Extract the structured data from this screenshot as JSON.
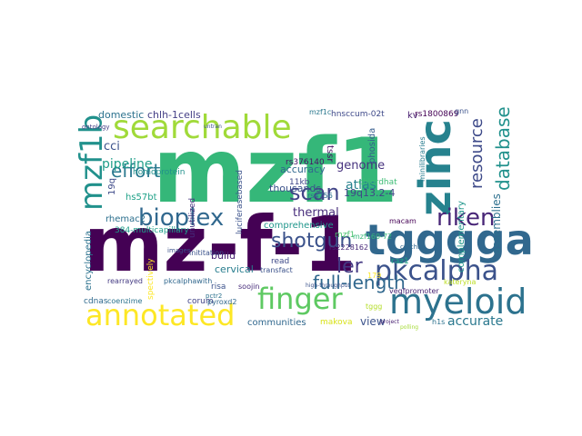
{
  "words": [
    {
      "text": "mz-f-1",
      "color": "#440154"
    },
    {
      "text": "mzf1",
      "color": "#35b779"
    },
    {
      "text": "tgggga",
      "color": "#31688e"
    },
    {
      "text": "zinc",
      "color": "#26828e"
    },
    {
      "text": "searchable",
      "color": "#a0da39"
    },
    {
      "text": "myeloid",
      "color": "#2c728e"
    },
    {
      "text": "pkcalpha",
      "color": "#3b528b"
    },
    {
      "text": "finger",
      "color": "#5ec962"
    },
    {
      "text": "annotated",
      "color": "#fde725"
    },
    {
      "text": "bioplex",
      "color": "#31688e"
    },
    {
      "text": "riken",
      "color": "#482677"
    },
    {
      "text": "mzf1b",
      "color": "#21918c"
    },
    {
      "text": "shotgun",
      "color": "#3b528b"
    },
    {
      "text": "full-length",
      "color": "#31688e"
    },
    {
      "text": "scan",
      "color": "#414487"
    },
    {
      "text": "effort",
      "color": "#2a788e"
    },
    {
      "text": "database",
      "color": "#21918c"
    },
    {
      "text": "resource",
      "color": "#3e4a89"
    },
    {
      "text": "ler",
      "color": "#443983"
    },
    {
      "text": "pipeline",
      "color": "#1f9e89"
    },
    {
      "text": "accurate",
      "color": "#2a788e"
    },
    {
      "text": "atlas",
      "color": "#26828e"
    },
    {
      "text": "genome",
      "color": "#46327e"
    },
    {
      "text": "thermal",
      "color": "#472d7b"
    },
    {
      "text": "cci",
      "color": "#3b528b"
    },
    {
      "text": "chlh-1cells",
      "color": "#433e85"
    },
    {
      "text": "domestic",
      "color": "#2c728e"
    },
    {
      "text": "assemblies",
      "color": "#2d708e"
    },
    {
      "text": "complementary",
      "color": "#1f968b"
    },
    {
      "text": "19q13.2-4",
      "color": "#404688"
    },
    {
      "text": "thousands",
      "color": "#3b528b"
    },
    {
      "text": "accuracy",
      "color": "#31688e"
    },
    {
      "text": "comprehensive",
      "color": "#1f968b"
    },
    {
      "text": "cervical",
      "color": "#287d8e"
    },
    {
      "text": "build",
      "color": "#482173"
    },
    {
      "text": "encyclopedia",
      "color": "#2c728e"
    },
    {
      "text": "384-multicapillary",
      "color": "#1f9e89"
    },
    {
      "text": "rhemac2",
      "color": "#2d708e"
    },
    {
      "text": "hs57bt",
      "color": "#1fa188"
    },
    {
      "text": "homoprotein",
      "color": "#21918c"
    },
    {
      "text": "19q",
      "color": "#3e4a89"
    },
    {
      "text": "unutilized",
      "color": "#46307e"
    },
    {
      "text": "luciferasebased",
      "color": "#3b528b"
    },
    {
      "text": "kv",
      "color": "#481f70"
    },
    {
      "text": "rs1800869",
      "color": "#440154"
    },
    {
      "text": "rs376140",
      "color": "#471365"
    },
    {
      "text": "11kb",
      "color": "#3f4788"
    },
    {
      "text": "rs4756",
      "color": "#2c728e"
    },
    {
      "text": "rs2228162",
      "color": "#482878"
    },
    {
      "text": "mzf1c",
      "color": "#2a788e"
    },
    {
      "text": "hnsccum-02t",
      "color": "#3e4989"
    },
    {
      "text": "tssr",
      "color": "#471063"
    },
    {
      "text": "phosida",
      "color": "#365c8d"
    },
    {
      "text": "minilibraries",
      "color": "#287c8e"
    },
    {
      "text": "chlordhat",
      "color": "#3dbc74"
    },
    {
      "text": "mzf1",
      "color": "#4ac16d"
    },
    {
      "text": "mzf160-72",
      "color": "#35b779"
    },
    {
      "text": "raz1",
      "color": "#20a386"
    },
    {
      "text": "macam",
      "color": "#440154"
    },
    {
      "text": "vegfpromoter",
      "color": "#482475"
    },
    {
      "text": "kateryna",
      "color": "#bddf26"
    },
    {
      "text": "view",
      "color": "#3b528b"
    },
    {
      "text": "communities",
      "color": "#31688e"
    },
    {
      "text": "makova",
      "color": "#d8e219"
    },
    {
      "text": "h1s",
      "color": "#2c728e"
    },
    {
      "text": "cdnas",
      "color": "#306a8e"
    },
    {
      "text": "coenzime",
      "color": "#2c738e"
    },
    {
      "text": "corum",
      "color": "#414487"
    },
    {
      "text": "pyroxd2",
      "color": "#31688e"
    },
    {
      "text": "pkcalphawith",
      "color": "#31688e"
    },
    {
      "text": "rearrayed",
      "color": "#443a83"
    },
    {
      "text": "spectively",
      "color": "#fde725"
    },
    {
      "text": "risa",
      "color": "#3b528b"
    },
    {
      "text": "soojin",
      "color": "#472c7a"
    },
    {
      "text": "transfact",
      "color": "#3b528b"
    },
    {
      "text": "read",
      "color": "#3e4a89"
    },
    {
      "text": "pctr2",
      "color": "#2c728e"
    },
    {
      "text": "inititation",
      "color": "#3b528b"
    },
    {
      "text": "ontology",
      "color": "#433e85"
    },
    {
      "text": "gnn",
      "color": "#3b528b"
    },
    {
      "text": "tggg",
      "color": "#b5de2b"
    },
    {
      "text": "high-throughput",
      "color": "#3b528b"
    },
    {
      "text": "co-chip",
      "color": "#31688e"
    },
    {
      "text": "179",
      "color": "#fde725"
    },
    {
      "text": "images",
      "color": "#3b528b"
    },
    {
      "text": "project",
      "color": "#482173"
    },
    {
      "text": "polling",
      "color": "#a5db36"
    },
    {
      "text": "untran",
      "color": "#3b528b"
    }
  ]
}
